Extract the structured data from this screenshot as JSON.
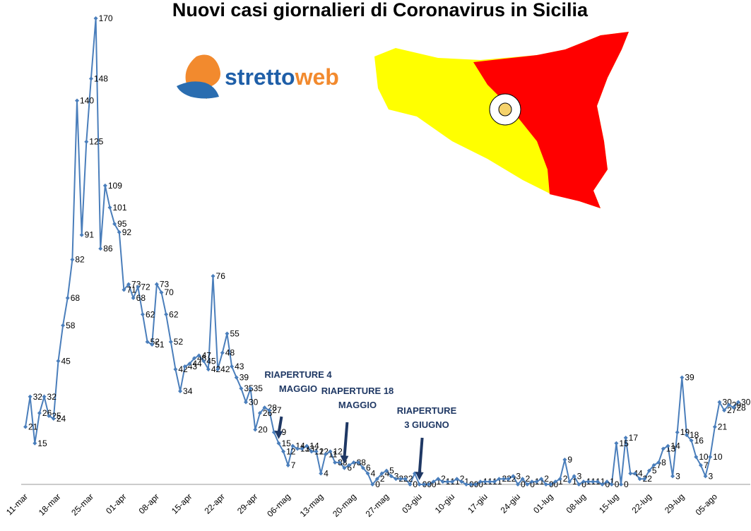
{
  "chart_data": {
    "type": "line",
    "title": "Nuovi casi giornalieri di Coronavirus in Sicilia",
    "categories": [
      "11-mar",
      null,
      null,
      null,
      null,
      null,
      null,
      "18-mar",
      null,
      null,
      null,
      null,
      null,
      null,
      "25-mar",
      null,
      null,
      null,
      null,
      null,
      null,
      "01-apr",
      null,
      null,
      null,
      null,
      null,
      null,
      "08-apr",
      null,
      null,
      null,
      null,
      null,
      null,
      "15-apr",
      null,
      null,
      null,
      null,
      null,
      null,
      "22-apr",
      null,
      null,
      null,
      null,
      null,
      null,
      "29-apr",
      null,
      null,
      null,
      null,
      null,
      null,
      "06-mag",
      null,
      null,
      null,
      null,
      null,
      null,
      "13-mag",
      null,
      null,
      null,
      null,
      null,
      null,
      "20-mag",
      null,
      null,
      null,
      null,
      null,
      null,
      "27-mag",
      null,
      null,
      null,
      null,
      null,
      null,
      "03-giu",
      null,
      null,
      null,
      null,
      null,
      null,
      "10-giu",
      null,
      null,
      null,
      null,
      null,
      null,
      "17-giu",
      null,
      null,
      null,
      null,
      null,
      null,
      "24-giu",
      null,
      null,
      null,
      null,
      null,
      null,
      "01-lug",
      null,
      null,
      null,
      null,
      null,
      null,
      "08-lug",
      null,
      null,
      null,
      null,
      null,
      null,
      "15-lug",
      null,
      null,
      null,
      null,
      null,
      null,
      "22-lug",
      null,
      null,
      null,
      null,
      null,
      null,
      "29-lug",
      null,
      null,
      null,
      null,
      null,
      null,
      "05-ago",
      null,
      null,
      null,
      null,
      null
    ],
    "values": [
      21,
      32,
      15,
      26,
      32,
      25,
      24,
      45,
      58,
      68,
      82,
      140,
      91,
      125,
      148,
      170,
      86,
      109,
      101,
      95,
      92,
      71,
      73,
      68,
      72,
      62,
      52,
      51,
      73,
      70,
      62,
      52,
      42,
      34,
      43,
      44,
      46,
      47,
      45,
      42,
      76,
      42,
      48,
      55,
      43,
      39,
      35,
      30,
      35,
      20,
      26,
      28,
      27,
      19,
      15,
      12,
      7,
      14,
      13,
      13,
      14,
      12,
      12,
      4,
      11,
      12,
      8,
      8,
      6,
      7,
      8,
      8,
      6,
      4,
      0,
      2,
      4,
      5,
      3,
      2,
      2,
      2,
      0,
      4,
      0,
      0,
      0,
      1,
      2,
      1,
      1,
      1,
      2,
      1,
      0,
      0,
      0,
      1,
      1,
      1,
      1,
      2,
      2,
      2,
      3,
      0,
      2,
      0,
      1,
      1,
      2,
      0,
      0,
      1,
      2,
      9,
      1,
      3,
      0,
      1,
      1,
      1,
      1,
      0,
      1,
      0,
      15,
      0,
      17,
      4,
      4,
      2,
      2,
      5,
      7,
      8,
      13,
      14,
      3,
      19,
      39,
      18,
      16,
      10,
      7,
      3,
      10,
      21,
      30,
      27,
      29,
      28,
      30
    ],
    "color": "#4a7ebb",
    "ylim": [
      0,
      170
    ],
    "annotations": [
      [
        "RIAPERTURE 4",
        "MAGGIO"
      ],
      [
        "RIAPERTURE 18",
        "MAGGIO"
      ],
      [
        "RIAPERTURE",
        "3 GIUGNO"
      ]
    ]
  },
  "logo": [
    "stretto",
    "web"
  ]
}
